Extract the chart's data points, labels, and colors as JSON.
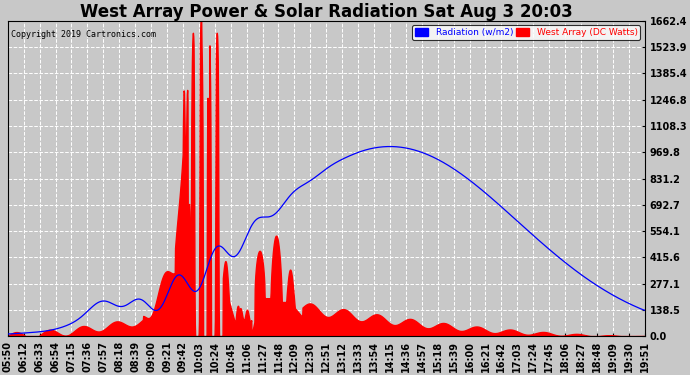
{
  "title": "West Array Power & Solar Radiation Sat Aug 3 20:03",
  "copyright": "Copyright 2019 Cartronics.com",
  "legend_labels": [
    "Radiation (w/m2)",
    "West Array (DC Watts)"
  ],
  "legend_colors": [
    "blue",
    "red"
  ],
  "y_max": 1662.4,
  "y_ticks": [
    0.0,
    138.5,
    277.1,
    415.6,
    554.1,
    692.7,
    831.2,
    969.8,
    1108.3,
    1246.8,
    1385.4,
    1523.9,
    1662.4
  ],
  "background_color": "#c8c8c8",
  "plot_bg_color": "#c8c8c8",
  "grid_color": "white",
  "title_fontsize": 12,
  "tick_label_fontsize": 7,
  "x_tick_labels": [
    "05:50",
    "06:12",
    "06:33",
    "06:54",
    "07:15",
    "07:36",
    "07:57",
    "08:18",
    "08:39",
    "09:00",
    "09:21",
    "09:42",
    "10:03",
    "10:24",
    "10:45",
    "11:06",
    "11:27",
    "11:48",
    "12:09",
    "12:30",
    "12:51",
    "13:12",
    "13:33",
    "13:54",
    "14:15",
    "14:36",
    "14:57",
    "15:18",
    "15:39",
    "16:00",
    "16:21",
    "16:42",
    "17:03",
    "17:24",
    "17:45",
    "18:06",
    "18:27",
    "18:48",
    "19:09",
    "19:30",
    "19:51"
  ]
}
